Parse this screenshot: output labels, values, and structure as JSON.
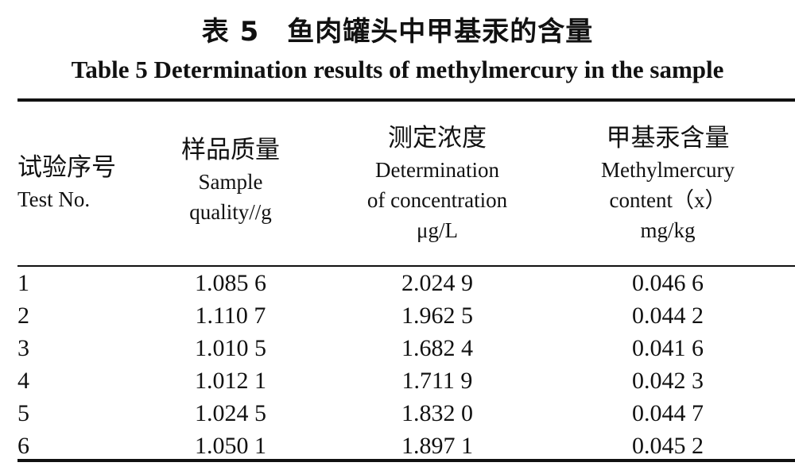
{
  "title_cn": "表 5　鱼肉罐头中甲基汞的含量",
  "title_en": "Table 5    Determination results of methylmercury in the sample",
  "headers": [
    {
      "cn": "试验序号",
      "en_lines": [
        "Test No."
      ]
    },
    {
      "cn": "样品质量",
      "en_lines": [
        "Sample",
        "quality//g"
      ]
    },
    {
      "cn": "测定浓度",
      "en_lines": [
        "Determination",
        "of concentration",
        "μg/L"
      ]
    },
    {
      "cn": "甲基汞含量",
      "en_lines": [
        "Methylmercury",
        "content（x）",
        "mg/kg"
      ]
    }
  ],
  "rows": [
    {
      "no": "1",
      "mass": "1.085 6",
      "conc": "2.024 9",
      "content": "0.046 6"
    },
    {
      "no": "2",
      "mass": "1.110 7",
      "conc": "1.962 5",
      "content": "0.044 2"
    },
    {
      "no": "3",
      "mass": "1.010 5",
      "conc": "1.682 4",
      "content": "0.041 6"
    },
    {
      "no": "4",
      "mass": "1.012 1",
      "conc": "1.711 9",
      "content": "0.042 3"
    },
    {
      "no": "5",
      "mass": "1.024 5",
      "conc": "1.832 0",
      "content": "0.044 7"
    },
    {
      "no": "6",
      "mass": "1.050 1",
      "conc": "1.897 1",
      "content": "0.045 2"
    }
  ]
}
